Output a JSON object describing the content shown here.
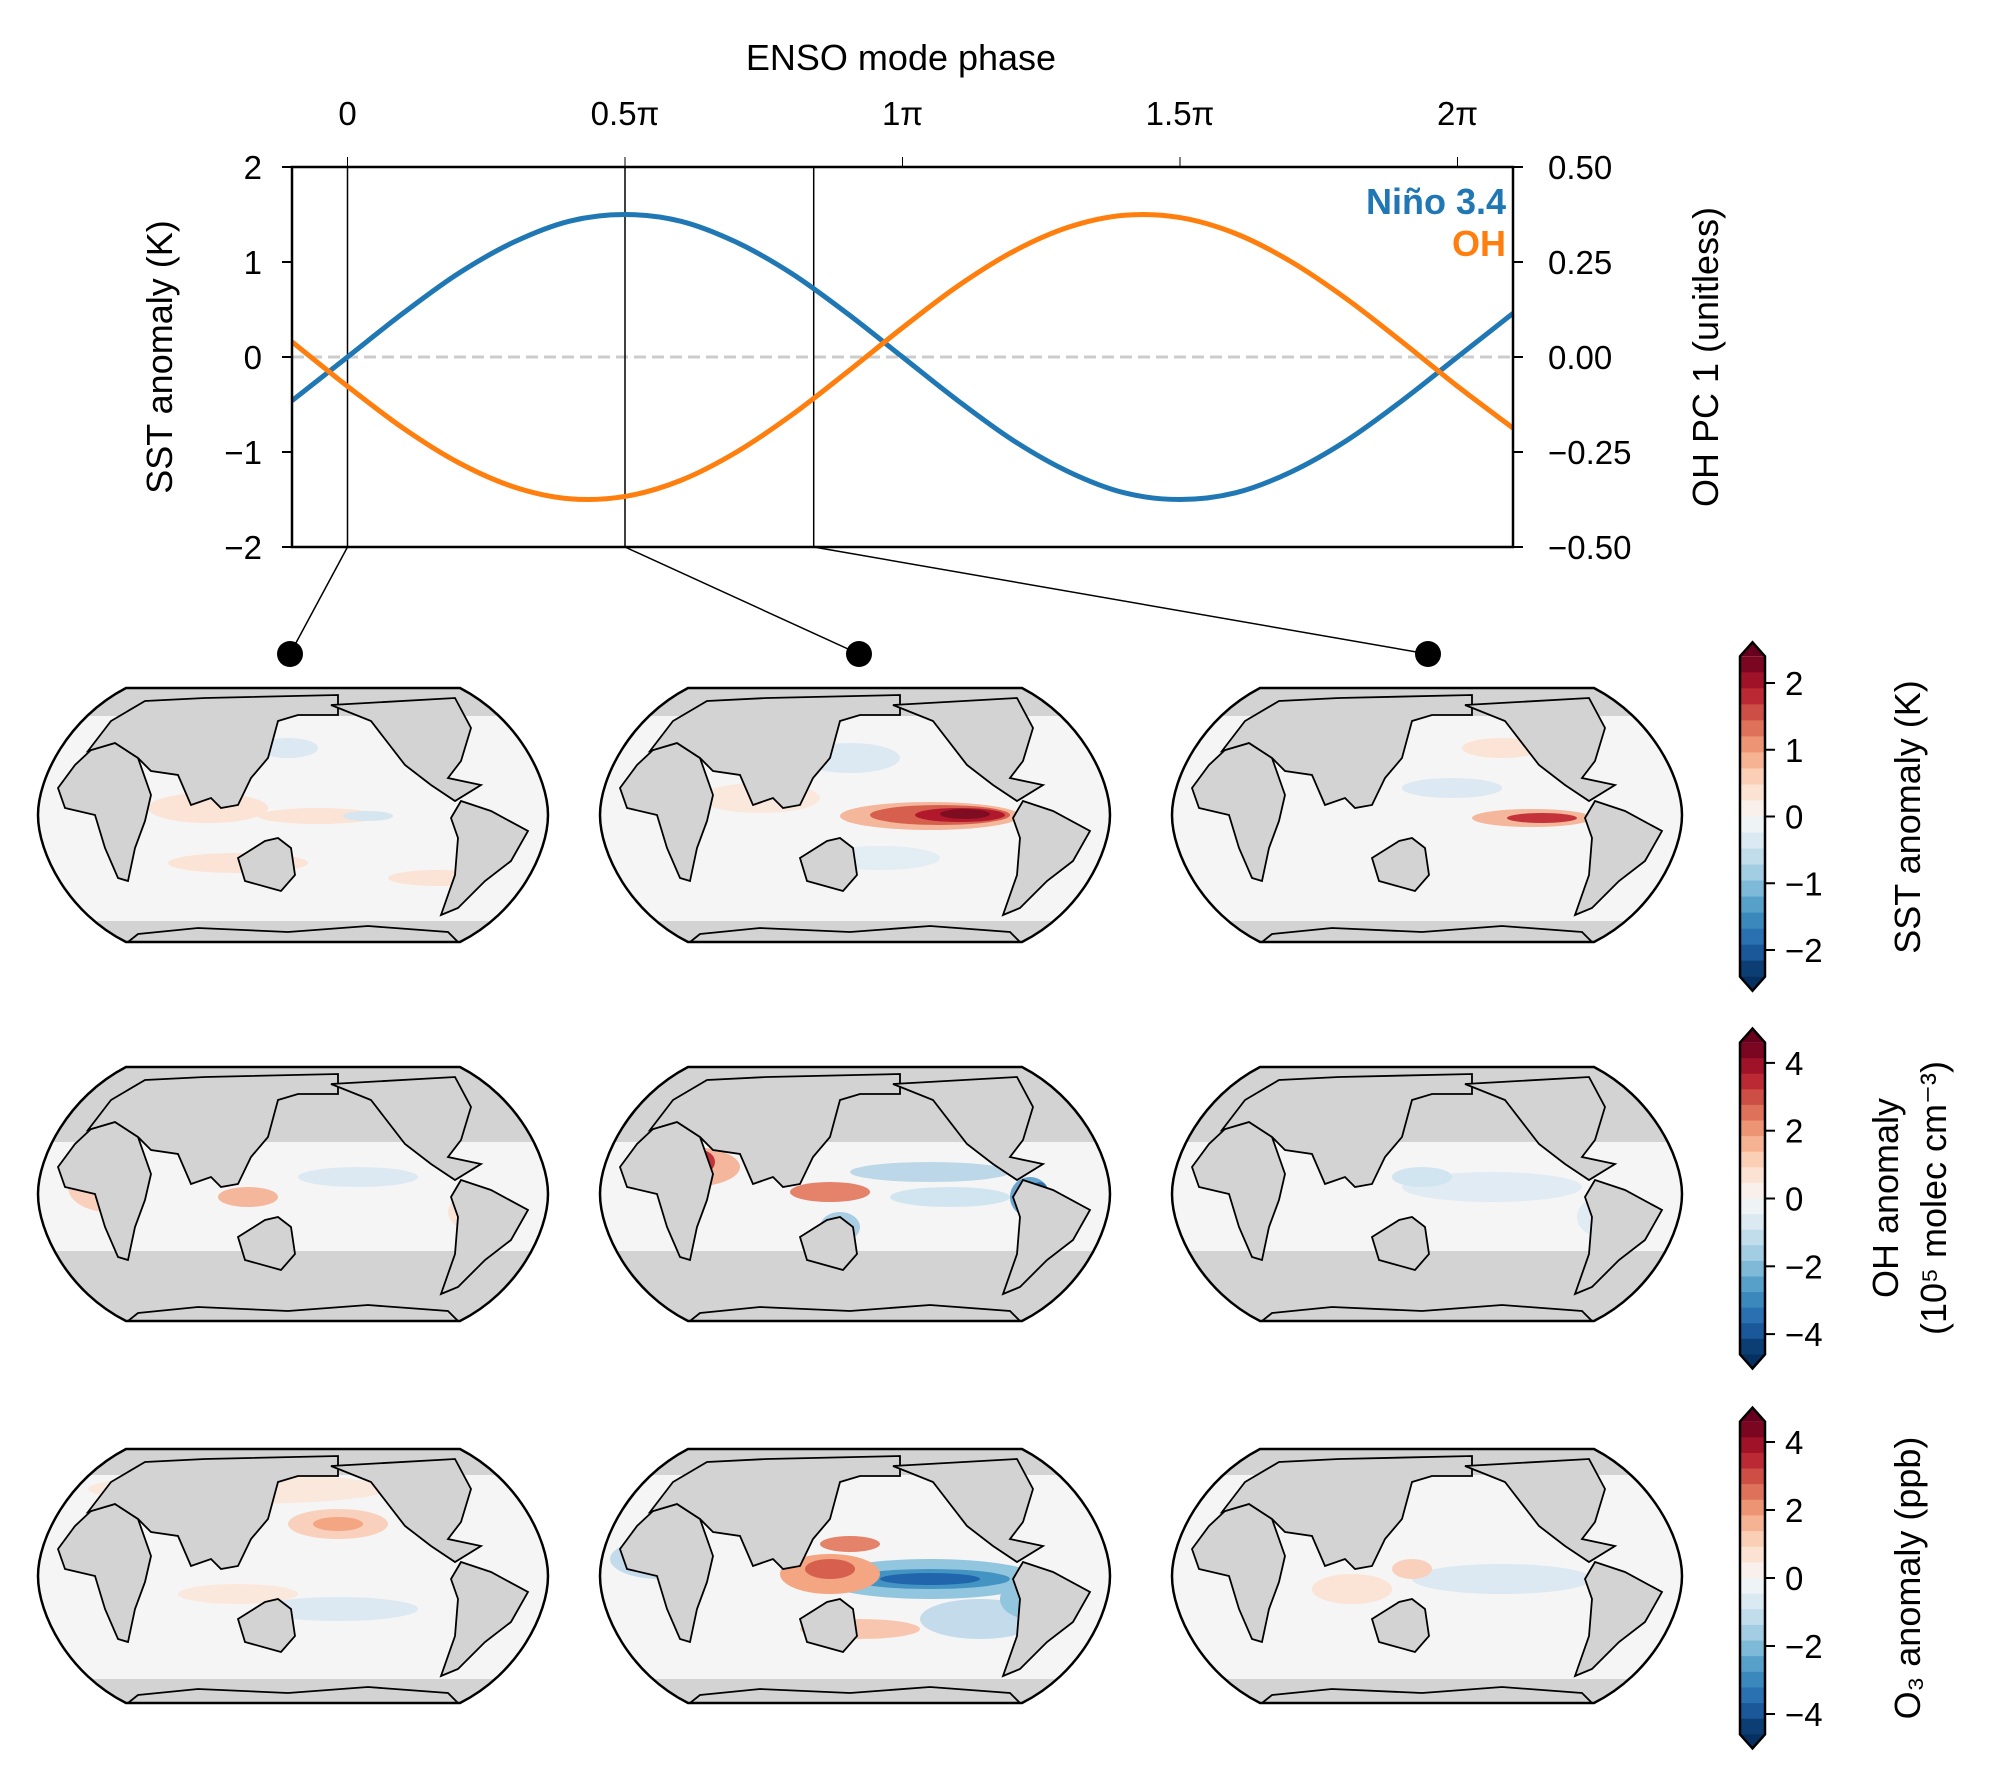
{
  "chart_data": [
    {
      "type": "line",
      "title": "",
      "top_xlabel": "ENSO mode phase",
      "x_unit": "π",
      "xlim": [
        -0.1,
        2.1
      ],
      "x_ticks": [
        0,
        0.5,
        1,
        1.5,
        2
      ],
      "x_tick_labels": [
        "0",
        "0.5π",
        "1π",
        "1.5π",
        "2π"
      ],
      "ylabel_left": "SST anomaly (K)",
      "ylim_left": [
        -2,
        2
      ],
      "y_ticks_left": [
        "−2",
        "−1",
        "0",
        "1",
        "2"
      ],
      "ylabel_right": "OH PC 1 (unitless)",
      "ylim_right": [
        -0.5,
        0.5
      ],
      "y_ticks_right": [
        "−0.50",
        "−0.25",
        "0.00",
        "0.25",
        "0.50"
      ],
      "zero_line": "dashed gray",
      "marked_phases": [
        0,
        0.5,
        0.84
      ],
      "legend_placement": "top-right",
      "x": [
        -0.1,
        0,
        0.1,
        0.2,
        0.3,
        0.4,
        0.5,
        0.6,
        0.7,
        0.8,
        0.9,
        1.0,
        1.1,
        1.2,
        1.3,
        1.4,
        1.5,
        1.6,
        1.7,
        1.8,
        1.9,
        2.0,
        2.1
      ],
      "series": [
        {
          "name": "Niño 3.4",
          "axis": "left",
          "color": "#1f77b4",
          "values": [
            -0.46,
            0,
            0.46,
            0.88,
            1.21,
            1.43,
            1.5,
            1.43,
            1.21,
            0.88,
            0.46,
            0,
            -0.46,
            -0.88,
            -1.21,
            -1.43,
            -1.5,
            -1.43,
            -1.21,
            -0.88,
            -0.46,
            0,
            0.46
          ]
        },
        {
          "name": "OH",
          "axis": "right",
          "color": "#ff7f0e",
          "values": [
            0.04,
            -0.077,
            -0.187,
            -0.278,
            -0.342,
            -0.373,
            -0.367,
            -0.325,
            -0.251,
            -0.153,
            -0.04,
            0.077,
            0.187,
            0.278,
            0.342,
            0.373,
            0.367,
            0.325,
            0.251,
            0.153,
            0.04,
            -0.077,
            -0.187
          ]
        }
      ]
    },
    {
      "type": "heatmap",
      "grid": "3x3 map panels (rows: SST, OH, O3; columns: marked phases)",
      "colormap": "RdBu_r",
      "colorbars": [
        {
          "label": "SST anomaly (K)",
          "ticks": [
            "−2",
            "−1",
            "0",
            "1",
            "2"
          ],
          "tick_values": [
            -2,
            -1,
            0,
            1,
            2
          ],
          "vmax": 2.4
        },
        {
          "label_line1": "OH anomaly",
          "label_line2": "(10⁵ molec cm⁻³)",
          "ticks": [
            "−4",
            "−2",
            "0",
            "2",
            "4"
          ],
          "tick_values": [
            -4,
            -2,
            0,
            2,
            4
          ],
          "vmax": 4.6
        },
        {
          "label": "O₃ anomaly (ppb)",
          "ticks": [
            "−4",
            "−2",
            "0",
            "2",
            "4"
          ],
          "tick_values": [
            -4,
            -2,
            0,
            2,
            4
          ],
          "vmax": 4.6
        }
      ]
    }
  ]
}
